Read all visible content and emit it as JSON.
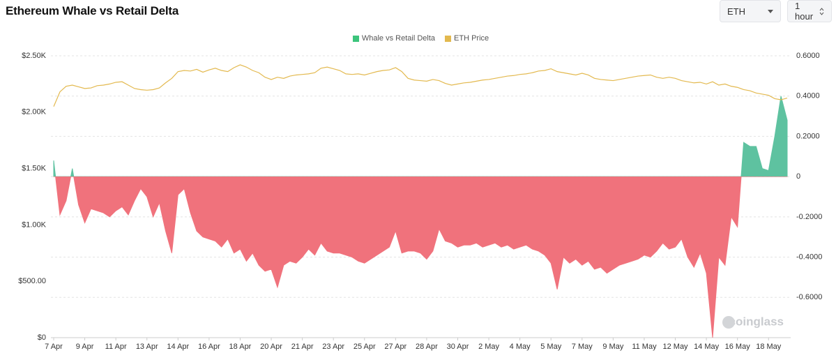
{
  "chart_data": {
    "type": "area-line",
    "title": "Ethereum Whale vs Retail Delta",
    "controls": {
      "coin": "ETH",
      "interval": "1 hour"
    },
    "watermark": "coinglass",
    "categories": [
      "7 Apr",
      null,
      null,
      null,
      null,
      "9 Apr",
      null,
      null,
      null,
      null,
      "11 Apr",
      null,
      null,
      null,
      null,
      "13 Apr",
      null,
      null,
      null,
      null,
      "14 Apr",
      null,
      null,
      null,
      null,
      "16 Apr",
      null,
      null,
      null,
      null,
      "18 Apr",
      null,
      null,
      null,
      null,
      "20 Apr",
      null,
      null,
      null,
      null,
      "21 Apr",
      null,
      null,
      null,
      null,
      "23 Apr",
      null,
      null,
      null,
      null,
      "25 Apr",
      null,
      null,
      null,
      null,
      "27 Apr",
      null,
      null,
      null,
      null,
      "28 Apr",
      null,
      null,
      null,
      null,
      "30 Apr",
      null,
      null,
      null,
      null,
      "2 May",
      null,
      null,
      null,
      null,
      "4 May",
      null,
      null,
      null,
      null,
      "5 May",
      null,
      null,
      null,
      null,
      "7 May",
      null,
      null,
      null,
      null,
      "9 May",
      null,
      null,
      null,
      null,
      "11 May",
      null,
      null,
      null,
      null,
      "12 May",
      null,
      null,
      null,
      null,
      "14 May",
      null,
      null,
      null,
      null,
      "16 May",
      null,
      null,
      null,
      null,
      "18 May",
      null,
      null,
      null
    ],
    "series": [
      {
        "name": "Whale vs Retail Delta",
        "type": "area",
        "axis": "y2",
        "color": "#3cc47c",
        "positive_color": "#5ec2a0",
        "negative_color": "#f0727c",
        "values": [
          0.08,
          -0.19,
          -0.12,
          0.04,
          -0.14,
          -0.23,
          -0.16,
          -0.17,
          -0.18,
          -0.2,
          -0.17,
          -0.15,
          -0.19,
          -0.12,
          -0.06,
          -0.1,
          -0.2,
          -0.13,
          -0.27,
          -0.38,
          -0.09,
          -0.06,
          -0.18,
          -0.27,
          -0.3,
          -0.31,
          -0.32,
          -0.35,
          -0.31,
          -0.38,
          -0.36,
          -0.42,
          -0.38,
          -0.44,
          -0.47,
          -0.46,
          -0.55,
          -0.44,
          -0.42,
          -0.43,
          -0.4,
          -0.36,
          -0.39,
          -0.33,
          -0.37,
          -0.38,
          -0.38,
          -0.39,
          -0.4,
          -0.42,
          -0.43,
          -0.41,
          -0.39,
          -0.37,
          -0.35,
          -0.27,
          -0.38,
          -0.37,
          -0.37,
          -0.38,
          -0.41,
          -0.37,
          -0.26,
          -0.32,
          -0.33,
          -0.35,
          -0.34,
          -0.34,
          -0.33,
          -0.35,
          -0.34,
          -0.33,
          -0.35,
          -0.34,
          -0.36,
          -0.35,
          -0.34,
          -0.36,
          -0.37,
          -0.39,
          -0.43,
          -0.56,
          -0.4,
          -0.43,
          -0.41,
          -0.44,
          -0.42,
          -0.46,
          -0.45,
          -0.48,
          -0.46,
          -0.44,
          -0.43,
          -0.42,
          -0.41,
          -0.39,
          -0.4,
          -0.37,
          -0.33,
          -0.36,
          -0.35,
          -0.31,
          -0.4,
          -0.45,
          -0.38,
          -0.48,
          -0.8,
          -0.4,
          -0.44,
          -0.2,
          -0.25,
          0.17,
          0.15,
          0.15,
          0.04,
          0.03,
          0.2,
          0.4,
          0.28
        ]
      },
      {
        "name": "ETH Price",
        "type": "line",
        "axis": "y",
        "color": "#e3b94f",
        "values": [
          2050,
          2180,
          2230,
          2240,
          2225,
          2210,
          2215,
          2235,
          2240,
          2250,
          2265,
          2270,
          2240,
          2210,
          2200,
          2195,
          2200,
          2215,
          2260,
          2300,
          2360,
          2370,
          2365,
          2380,
          2355,
          2375,
          2390,
          2370,
          2360,
          2395,
          2420,
          2400,
          2370,
          2350,
          2310,
          2290,
          2310,
          2300,
          2320,
          2330,
          2335,
          2340,
          2350,
          2390,
          2400,
          2385,
          2370,
          2340,
          2335,
          2340,
          2330,
          2345,
          2360,
          2370,
          2375,
          2395,
          2360,
          2300,
          2285,
          2280,
          2275,
          2290,
          2280,
          2255,
          2240,
          2250,
          2260,
          2265,
          2275,
          2285,
          2290,
          2300,
          2310,
          2320,
          2325,
          2335,
          2340,
          2350,
          2365,
          2370,
          2385,
          2360,
          2350,
          2340,
          2330,
          2345,
          2330,
          2300,
          2290,
          2285,
          2280,
          2290,
          2300,
          2310,
          2320,
          2325,
          2330,
          2310,
          2300,
          2310,
          2300,
          2280,
          2270,
          2260,
          2265,
          2250,
          2270,
          2240,
          2250,
          2230,
          2220,
          2200,
          2190,
          2170,
          2160,
          2150,
          2120,
          2110,
          2125
        ]
      }
    ],
    "ylim": [
      0,
      2500
    ],
    "yticks": [
      {
        "value": 0,
        "label": "$0"
      },
      {
        "value": 500,
        "label": "$500.00"
      },
      {
        "value": 1000,
        "label": "$1.00K"
      },
      {
        "value": 1500,
        "label": "$1.50K"
      },
      {
        "value": 2000,
        "label": "$2.00K"
      },
      {
        "value": 2500,
        "label": "$2.50K"
      }
    ],
    "y2lim": [
      -0.8,
      0.6
    ],
    "y2ticks": [
      {
        "value": 0.6,
        "label": "0.6000"
      },
      {
        "value": 0.4,
        "label": "0.4000"
      },
      {
        "value": 0.2,
        "label": "0.2000"
      },
      0,
      {
        "value": -0.2,
        "label": "-0.2000"
      },
      {
        "value": -0.4,
        "label": "-0.4000"
      },
      {
        "value": -0.6,
        "label": "-0.6000"
      }
    ],
    "grid": true,
    "legend": "top"
  }
}
